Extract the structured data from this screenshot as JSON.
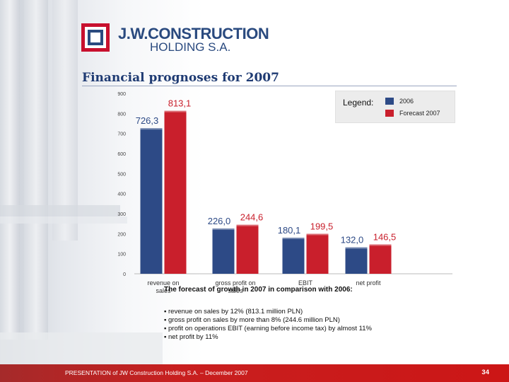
{
  "header": {
    "logo_line1": "J.W.CONSTRUCTION",
    "logo_line2": "HOLDING S.A."
  },
  "page_title": "Financial prognoses for 2007",
  "colors": {
    "series_2006": "#2d4a86",
    "series_2007": "#c91f2c",
    "brand": "#2a4a7f",
    "footer": "#cc1616"
  },
  "legend": {
    "title": "Legend:",
    "items": [
      "2006",
      "Forecast 2007"
    ]
  },
  "chart_data": {
    "type": "bar",
    "categories": [
      "revenue on\nsales",
      "gross profit on\nsales",
      "EBIT",
      "net profit"
    ],
    "series": [
      {
        "name": "2006",
        "values": [
          726.3,
          226.0,
          180.1,
          132.0
        ],
        "labels": [
          "726,3",
          "226,0",
          "180,1",
          "132,0"
        ]
      },
      {
        "name": "Forecast 2007",
        "values": [
          813.1,
          244.6,
          199.5,
          146.5
        ],
        "labels": [
          "813,1",
          "244,6",
          "199,5",
          "146,5"
        ]
      }
    ],
    "ylim": [
      0,
      900
    ],
    "yticks": [
      0,
      100,
      200,
      300,
      400,
      500,
      600,
      700,
      800,
      900
    ],
    "xlabel": "",
    "ylabel": "",
    "legend_position": "top-right"
  },
  "notes": {
    "heading": "The forecast of growth in 2007 in comparison with 2006:",
    "items": [
      "▪ revenue on sales by 12% (813.1 million PLN)",
      "▪ gross profit on sales by more than 8% (244.6 million PLN)",
      "▪ profit on operations EBIT (earning before income tax) by almost 11%",
      "▪ net profit by 11%"
    ]
  },
  "footer": {
    "text": "PRESENTATION of JW Construction Holding S.A. – December 2007",
    "page_number": "34"
  }
}
